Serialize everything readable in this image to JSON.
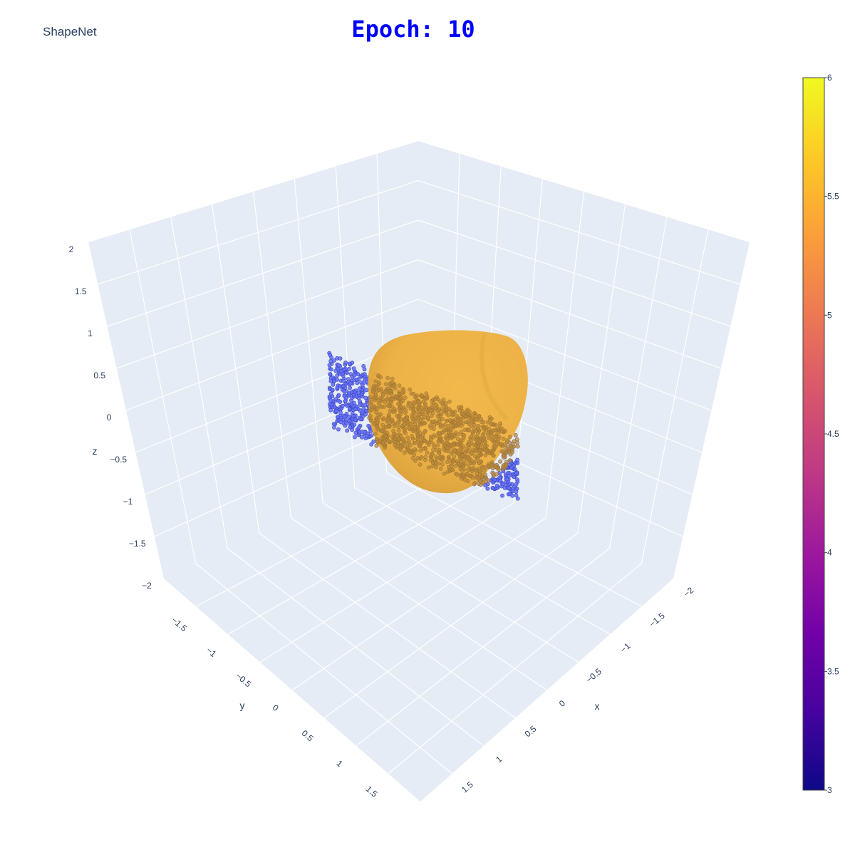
{
  "dataset_label": "ShapeNet",
  "title": "Epoch: 10",
  "chart_data": {
    "type": "scatter3d",
    "title": "Epoch: 10",
    "axes": {
      "x": {
        "label": "x",
        "range": [
          -2,
          2
        ],
        "ticks": [
          "−2",
          "−1.5",
          "−1",
          "−0.5",
          "0",
          "0.5",
          "1",
          "1.5"
        ]
      },
      "y": {
        "label": "y",
        "range": [
          -2,
          2
        ],
        "ticks": [
          "−1.5",
          "−1",
          "−0.5",
          "0",
          "0.5",
          "1",
          "1.5"
        ]
      },
      "z": {
        "label": "z",
        "range": [
          -2,
          2
        ],
        "ticks": [
          "−2",
          "−1.5",
          "−1",
          "−0.5",
          "0",
          "0.5",
          "1",
          "1.5",
          "2"
        ]
      }
    },
    "background_color": "#e5ecf6",
    "grid": true,
    "series": [
      {
        "kind": "point-cloud",
        "color": "#636efa",
        "center": [
          0,
          0.15,
          -0.25
        ],
        "extent": [
          0.55,
          0.9,
          0.3
        ]
      },
      {
        "kind": "surface",
        "color": "#f0b540",
        "center": [
          0,
          -0.45,
          0.5
        ],
        "extent": [
          0.55,
          0.6,
          0.7
        ]
      }
    ],
    "colorbar": {
      "ticks": [
        "3",
        "3.5",
        "4",
        "4.5",
        "5",
        "5.5",
        "6"
      ],
      "range": [
        3,
        6
      ],
      "colorscale": [
        "#0d0887",
        "#46039f",
        "#7201a8",
        "#9c179e",
        "#bd3786",
        "#d8576b",
        "#ed7953",
        "#fb9f3a",
        "#fdca26",
        "#f0f921"
      ]
    }
  }
}
